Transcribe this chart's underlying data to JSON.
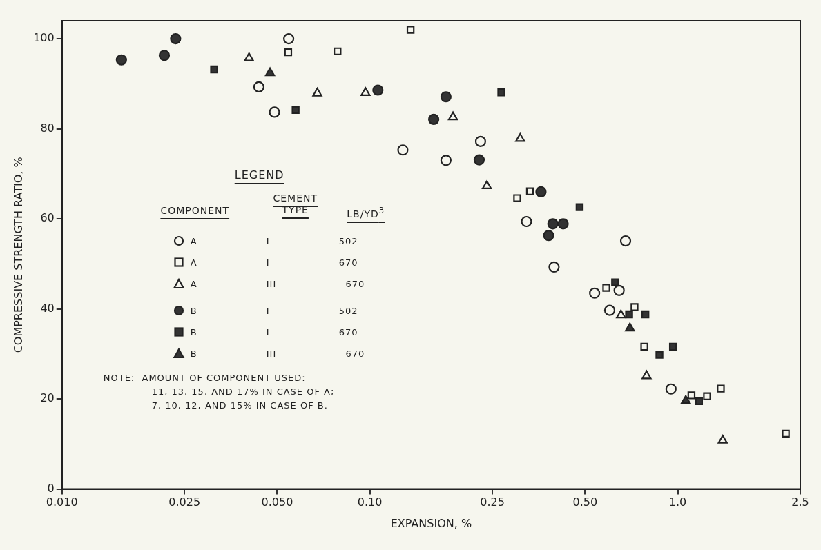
{
  "chart_data": {
    "type": "scatter",
    "xlabel": "EXPANSION, %",
    "ylabel": "COMPRESSIVE STRENGTH RATIO, %",
    "legend_title": "LEGEND",
    "legend": "left",
    "log": "x",
    "grid": false,
    "xlim": [
      0.01,
      2.5
    ],
    "xticks": [
      {
        "value": 0.01,
        "label": "0.010"
      },
      {
        "value": 0.025,
        "label": "0.025"
      },
      {
        "value": 0.05,
        "label": "0.050"
      },
      {
        "value": 0.1,
        "label": "0.10"
      },
      {
        "value": 0.25,
        "label": "0.25"
      },
      {
        "value": 0.5,
        "label": "0.50"
      },
      {
        "value": 1,
        "label": "1.0"
      },
      {
        "value": 2.5,
        "label": "2.5"
      }
    ],
    "ylim": [
      0,
      104
    ],
    "yticks": [
      0,
      20,
      40,
      60,
      80,
      100
    ],
    "annotations": [
      "COMPONENT",
      "CEMENT TYPE",
      "LB/YD$^{3}$",
      "NOTE:  AMOUNT OF COMPONENT USED:",
      "11, 13, 15, AND 17% IN CASE OF A;",
      "7, 10, 12, AND 15% IN CASE OF B."
    ],
    "series": [
      {
        "name": "A I 502",
        "color": "#f6f6ee",
        "marker": "circle",
        "x": [
          0.0436,
          0.049,
          0.0545,
          0.128,
          0.1767,
          0.2288,
          0.3226,
          0.3965,
          0.677,
          0.537,
          0.645,
          0.601,
          0.951
        ],
        "values": [
          89.3,
          83.7,
          100,
          75.3,
          73,
          77.2,
          59.4,
          49.3,
          55.1,
          43.5,
          44.1,
          39.7,
          22.2
        ]
      },
      {
        "name": "A I 670",
        "color": "#f6f6ee",
        "marker": "square",
        "x": [
          0.0543,
          0.0785,
          0.1356,
          0.3009,
          0.3311,
          0.586,
          0.7237,
          0.7788,
          1.108,
          1.245,
          1.38,
          2.244
        ],
        "values": [
          97,
          97.2,
          102,
          64.6,
          66.1,
          44.7,
          40.4,
          31.6,
          20.8,
          20.6,
          22.3,
          12.3
        ]
      },
      {
        "name": "A III 670",
        "color": "#f6f6ee",
        "marker": "triangle",
        "x": [
          0.0405,
          0.0675,
          0.0968,
          0.1862,
          0.3077,
          0.2399,
          0.654,
          0.792,
          1.4
        ],
        "values": [
          95.7,
          87.9,
          88,
          82.6,
          77.8,
          67.3,
          38.6,
          25.1,
          10.8
        ]
      },
      {
        "name": "B I 502",
        "color": "#333333",
        "marker": "circle",
        "x": [
          0.0156,
          0.0215,
          0.0234,
          0.1062,
          0.1767,
          0.1612,
          0.2265,
          0.3595,
          0.393,
          0.4244,
          0.3808
        ],
        "values": [
          95.3,
          96.3,
          100,
          88.6,
          87.1,
          82.1,
          73.1,
          66,
          58.9,
          58.9,
          56.3
        ]
      },
      {
        "name": "B I 670",
        "color": "#333333",
        "marker": "square",
        "x": [
          0.0312,
          0.0574,
          0.2673,
          0.48,
          0.626,
          0.695,
          0.785,
          0.872,
          0.965,
          1.172
        ],
        "values": [
          93.2,
          84.2,
          88.1,
          62.6,
          45.9,
          38.8,
          38.8,
          29.8,
          31.6,
          19.5
        ]
      },
      {
        "name": "B III 670",
        "color": "#333333",
        "marker": "triangle",
        "x": [
          0.0474,
          0.699,
          1.062
        ],
        "values": [
          92.4,
          35.7,
          19.6
        ]
      }
    ]
  }
}
